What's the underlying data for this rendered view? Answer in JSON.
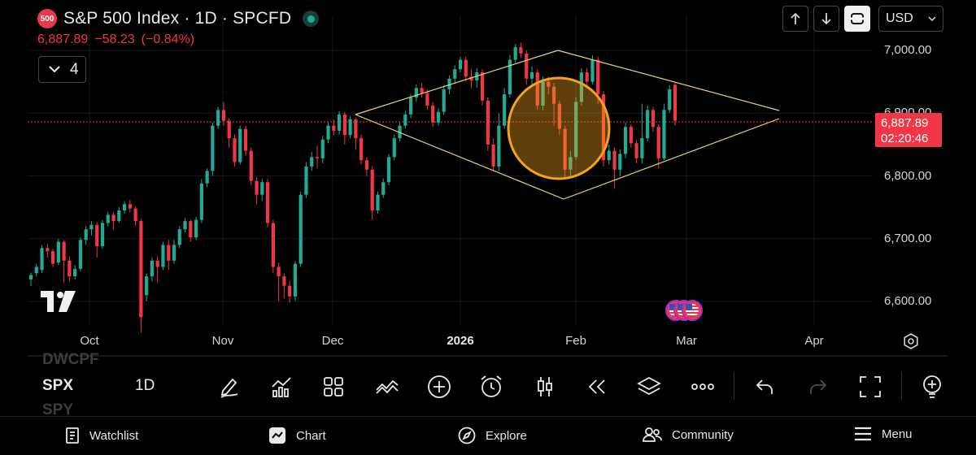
{
  "header": {
    "symbol_badge": "500",
    "title": "S&P 500 Index · 1D · SPCFD",
    "price": "6,887.89",
    "change": "−58.23",
    "change_pct": "(−0.84%)",
    "indicator_count": "4"
  },
  "toolbar": {
    "currency": "USD"
  },
  "price_tag": {
    "price": "6,887.89",
    "countdown": "02:20:46"
  },
  "symbols": {
    "prev": "DWCPF",
    "current": "SPX",
    "next": "SPY",
    "interval": "1D"
  },
  "nav": {
    "watchlist": "Watchlist",
    "chart": "Chart",
    "explore": "Explore",
    "community": "Community",
    "menu": "Menu"
  },
  "chart_data": {
    "type": "candlestick",
    "y_tick_labels": [
      "7,000.00",
      "6,900.00",
      "6,800.00",
      "6,700.00",
      "6,600.00"
    ],
    "y_ticks": [
      7000,
      6900,
      6800,
      6700,
      6600
    ],
    "x_tick_labels": [
      "Oct",
      "Nov",
      "Dec",
      "2026",
      "Feb",
      "Mar",
      "Apr"
    ],
    "ylim": [
      6555,
      7070
    ],
    "last_price": 6887.89,
    "colors": {
      "up": "#22ab94",
      "down": "#f23645",
      "pattern": "#e8d57a",
      "circle": "#f7a21b"
    },
    "candles": [
      {
        "o": 6635,
        "c": 6642,
        "h": 6646,
        "l": 6625
      },
      {
        "o": 6645,
        "c": 6655,
        "h": 6660,
        "l": 6640
      },
      {
        "o": 6650,
        "c": 6685,
        "h": 6690,
        "l": 6645
      },
      {
        "o": 6685,
        "c": 6680,
        "h": 6692,
        "l": 6670
      },
      {
        "o": 6680,
        "c": 6660,
        "h": 6684,
        "l": 6655
      },
      {
        "o": 6662,
        "c": 6695,
        "h": 6700,
        "l": 6658
      },
      {
        "o": 6695,
        "c": 6665,
        "h": 6698,
        "l": 6630
      },
      {
        "o": 6665,
        "c": 6640,
        "h": 6672,
        "l": 6632
      },
      {
        "o": 6640,
        "c": 6652,
        "h": 6658,
        "l": 6635
      },
      {
        "o": 6652,
        "c": 6698,
        "h": 6702,
        "l": 6648
      },
      {
        "o": 6698,
        "c": 6715,
        "h": 6720,
        "l": 6690
      },
      {
        "o": 6715,
        "c": 6722,
        "h": 6728,
        "l": 6705
      },
      {
        "o": 6722,
        "c": 6688,
        "h": 6726,
        "l": 6670
      },
      {
        "o": 6688,
        "c": 6725,
        "h": 6730,
        "l": 6684
      },
      {
        "o": 6725,
        "c": 6738,
        "h": 6743,
        "l": 6720
      },
      {
        "o": 6738,
        "c": 6728,
        "h": 6742,
        "l": 6714
      },
      {
        "o": 6728,
        "c": 6745,
        "h": 6750,
        "l": 6725
      },
      {
        "o": 6745,
        "c": 6755,
        "h": 6760,
        "l": 6740
      },
      {
        "o": 6755,
        "c": 6748,
        "h": 6762,
        "l": 6742
      },
      {
        "o": 6748,
        "c": 6728,
        "h": 6752,
        "l": 6720
      },
      {
        "o": 6728,
        "c": 6575,
        "h": 6732,
        "l": 6550
      },
      {
        "o": 6610,
        "c": 6640,
        "h": 6644,
        "l": 6600
      },
      {
        "o": 6640,
        "c": 6665,
        "h": 6670,
        "l": 6632
      },
      {
        "o": 6665,
        "c": 6655,
        "h": 6672,
        "l": 6630
      },
      {
        "o": 6655,
        "c": 6690,
        "h": 6695,
        "l": 6650
      },
      {
        "o": 6690,
        "c": 6665,
        "h": 6698,
        "l": 6650
      },
      {
        "o": 6665,
        "c": 6690,
        "h": 6698,
        "l": 6660
      },
      {
        "o": 6690,
        "c": 6715,
        "h": 6720,
        "l": 6685
      },
      {
        "o": 6715,
        "c": 6728,
        "h": 6733,
        "l": 6710
      },
      {
        "o": 6728,
        "c": 6702,
        "h": 6730,
        "l": 6695
      },
      {
        "o": 6702,
        "c": 6730,
        "h": 6735,
        "l": 6698
      },
      {
        "o": 6730,
        "c": 6788,
        "h": 6795,
        "l": 6725
      },
      {
        "o": 6788,
        "c": 6808,
        "h": 6812,
        "l": 6782
      },
      {
        "o": 6808,
        "c": 6880,
        "h": 6885,
        "l": 6800
      },
      {
        "o": 6880,
        "c": 6905,
        "h": 6910,
        "l": 6875
      },
      {
        "o": 6905,
        "c": 6888,
        "h": 6918,
        "l": 6880
      },
      {
        "o": 6888,
        "c": 6860,
        "h": 6892,
        "l": 6845
      },
      {
        "o": 6860,
        "c": 6822,
        "h": 6866,
        "l": 6815
      },
      {
        "o": 6822,
        "c": 6875,
        "h": 6880,
        "l": 6818
      },
      {
        "o": 6875,
        "c": 6840,
        "h": 6880,
        "l": 6832
      },
      {
        "o": 6840,
        "c": 6792,
        "h": 6845,
        "l": 6785
      },
      {
        "o": 6792,
        "c": 6770,
        "h": 6798,
        "l": 6755
      },
      {
        "o": 6770,
        "c": 6790,
        "h": 6795,
        "l": 6760
      },
      {
        "o": 6790,
        "c": 6725,
        "h": 6795,
        "l": 6718
      },
      {
        "o": 6725,
        "c": 6655,
        "h": 6730,
        "l": 6645
      },
      {
        "o": 6655,
        "c": 6640,
        "h": 6662,
        "l": 6600
      },
      {
        "o": 6640,
        "c": 6625,
        "h": 6645,
        "l": 6605
      },
      {
        "o": 6625,
        "c": 6608,
        "h": 6632,
        "l": 6598
      },
      {
        "o": 6608,
        "c": 6660,
        "h": 6664,
        "l": 6600
      },
      {
        "o": 6660,
        "c": 6770,
        "h": 6775,
        "l": 6655
      },
      {
        "o": 6770,
        "c": 6815,
        "h": 6822,
        "l": 6765
      },
      {
        "o": 6815,
        "c": 6830,
        "h": 6838,
        "l": 6808
      },
      {
        "o": 6830,
        "c": 6828,
        "h": 6848,
        "l": 6812
      },
      {
        "o": 6828,
        "c": 6858,
        "h": 6864,
        "l": 6820
      },
      {
        "o": 6858,
        "c": 6880,
        "h": 6885,
        "l": 6852
      },
      {
        "o": 6880,
        "c": 6872,
        "h": 6890,
        "l": 6865
      },
      {
        "o": 6872,
        "c": 6898,
        "h": 6903,
        "l": 6866
      },
      {
        "o": 6898,
        "c": 6865,
        "h": 6902,
        "l": 6850
      },
      {
        "o": 6865,
        "c": 6890,
        "h": 6895,
        "l": 6860
      },
      {
        "o": 6890,
        "c": 6860,
        "h": 6893,
        "l": 6842
      },
      {
        "o": 6860,
        "c": 6825,
        "h": 6866,
        "l": 6818
      },
      {
        "o": 6825,
        "c": 6810,
        "h": 6830,
        "l": 6800
      },
      {
        "o": 6810,
        "c": 6745,
        "h": 6815,
        "l": 6730
      },
      {
        "o": 6745,
        "c": 6770,
        "h": 6775,
        "l": 6740
      },
      {
        "o": 6770,
        "c": 6790,
        "h": 6796,
        "l": 6765
      },
      {
        "o": 6790,
        "c": 6830,
        "h": 6835,
        "l": 6785
      },
      {
        "o": 6830,
        "c": 6860,
        "h": 6866,
        "l": 6825
      },
      {
        "o": 6860,
        "c": 6880,
        "h": 6885,
        "l": 6855
      },
      {
        "o": 6880,
        "c": 6898,
        "h": 6904,
        "l": 6875
      },
      {
        "o": 6898,
        "c": 6925,
        "h": 6930,
        "l": 6892
      },
      {
        "o": 6925,
        "c": 6940,
        "h": 6946,
        "l": 6918
      },
      {
        "o": 6940,
        "c": 6932,
        "h": 6948,
        "l": 6925
      },
      {
        "o": 6932,
        "c": 6912,
        "h": 6938,
        "l": 6905
      },
      {
        "o": 6912,
        "c": 6885,
        "h": 6918,
        "l": 6878
      },
      {
        "o": 6885,
        "c": 6902,
        "h": 6908,
        "l": 6880
      },
      {
        "o": 6902,
        "c": 6938,
        "h": 6945,
        "l": 6897
      },
      {
        "o": 6938,
        "c": 6955,
        "h": 6960,
        "l": 6930
      },
      {
        "o": 6955,
        "c": 6970,
        "h": 6976,
        "l": 6948
      },
      {
        "o": 6970,
        "c": 6985,
        "h": 6990,
        "l": 6965
      },
      {
        "o": 6985,
        "c": 6958,
        "h": 6990,
        "l": 6950
      },
      {
        "o": 6958,
        "c": 6952,
        "h": 6970,
        "l": 6940
      },
      {
        "o": 6952,
        "c": 6965,
        "h": 6972,
        "l": 6940
      },
      {
        "o": 6965,
        "c": 6920,
        "h": 6970,
        "l": 6912
      },
      {
        "o": 6920,
        "c": 6850,
        "h": 6925,
        "l": 6840
      },
      {
        "o": 6850,
        "c": 6815,
        "h": 6860,
        "l": 6808
      },
      {
        "o": 6815,
        "c": 6880,
        "h": 6900,
        "l": 6808
      },
      {
        "o": 6880,
        "c": 6930,
        "h": 6940,
        "l": 6875
      },
      {
        "o": 6930,
        "c": 6985,
        "h": 6993,
        "l": 6925
      },
      {
        "o": 6985,
        "c": 7005,
        "h": 7010,
        "l": 6980
      },
      {
        "o": 7005,
        "c": 6995,
        "h": 7012,
        "l": 6988
      },
      {
        "o": 6995,
        "c": 6955,
        "h": 7000,
        "l": 6945
      },
      {
        "o": 6955,
        "c": 6965,
        "h": 6975,
        "l": 6945
      },
      {
        "o": 6965,
        "c": 6912,
        "h": 6970,
        "l": 6905
      },
      {
        "o": 6912,
        "c": 6950,
        "h": 6958,
        "l": 6905
      },
      {
        "o": 6950,
        "c": 6942,
        "h": 6958,
        "l": 6930
      },
      {
        "o": 6942,
        "c": 6915,
        "h": 6948,
        "l": 6880
      },
      {
        "o": 6915,
        "c": 6875,
        "h": 6920,
        "l": 6865
      },
      {
        "o": 6875,
        "c": 6810,
        "h": 6880,
        "l": 6795
      },
      {
        "o": 6810,
        "c": 6830,
        "h": 6840,
        "l": 6800
      },
      {
        "o": 6830,
        "c": 6918,
        "h": 6925,
        "l": 6826
      },
      {
        "o": 6918,
        "c": 6965,
        "h": 6972,
        "l": 6912
      },
      {
        "o": 6965,
        "c": 6950,
        "h": 6972,
        "l": 6940
      },
      {
        "o": 6950,
        "c": 6985,
        "h": 6992,
        "l": 6946
      },
      {
        "o": 6985,
        "c": 6930,
        "h": 6990,
        "l": 6915
      },
      {
        "o": 6930,
        "c": 6825,
        "h": 6935,
        "l": 6815
      },
      {
        "o": 6825,
        "c": 6840,
        "h": 6850,
        "l": 6818
      },
      {
        "o": 6840,
        "c": 6810,
        "h": 6845,
        "l": 6780
      },
      {
        "o": 6810,
        "c": 6835,
        "h": 6842,
        "l": 6800
      },
      {
        "o": 6835,
        "c": 6878,
        "h": 6885,
        "l": 6828
      },
      {
        "o": 6878,
        "c": 6852,
        "h": 6882,
        "l": 6845
      },
      {
        "o": 6852,
        "c": 6828,
        "h": 6858,
        "l": 6820
      },
      {
        "o": 6828,
        "c": 6860,
        "h": 6915,
        "l": 6820
      },
      {
        "o": 6860,
        "c": 6905,
        "h": 6912,
        "l": 6855
      },
      {
        "o": 6905,
        "c": 6878,
        "h": 6910,
        "l": 6870
      },
      {
        "o": 6878,
        "c": 6828,
        "h": 6882,
        "l": 6812
      },
      {
        "o": 6828,
        "c": 6905,
        "h": 6915,
        "l": 6825
      },
      {
        "o": 6905,
        "c": 6938,
        "h": 6945,
        "l": 6900
      },
      {
        "o": 6945,
        "c": 6888,
        "h": 6948,
        "l": 6880
      }
    ]
  }
}
